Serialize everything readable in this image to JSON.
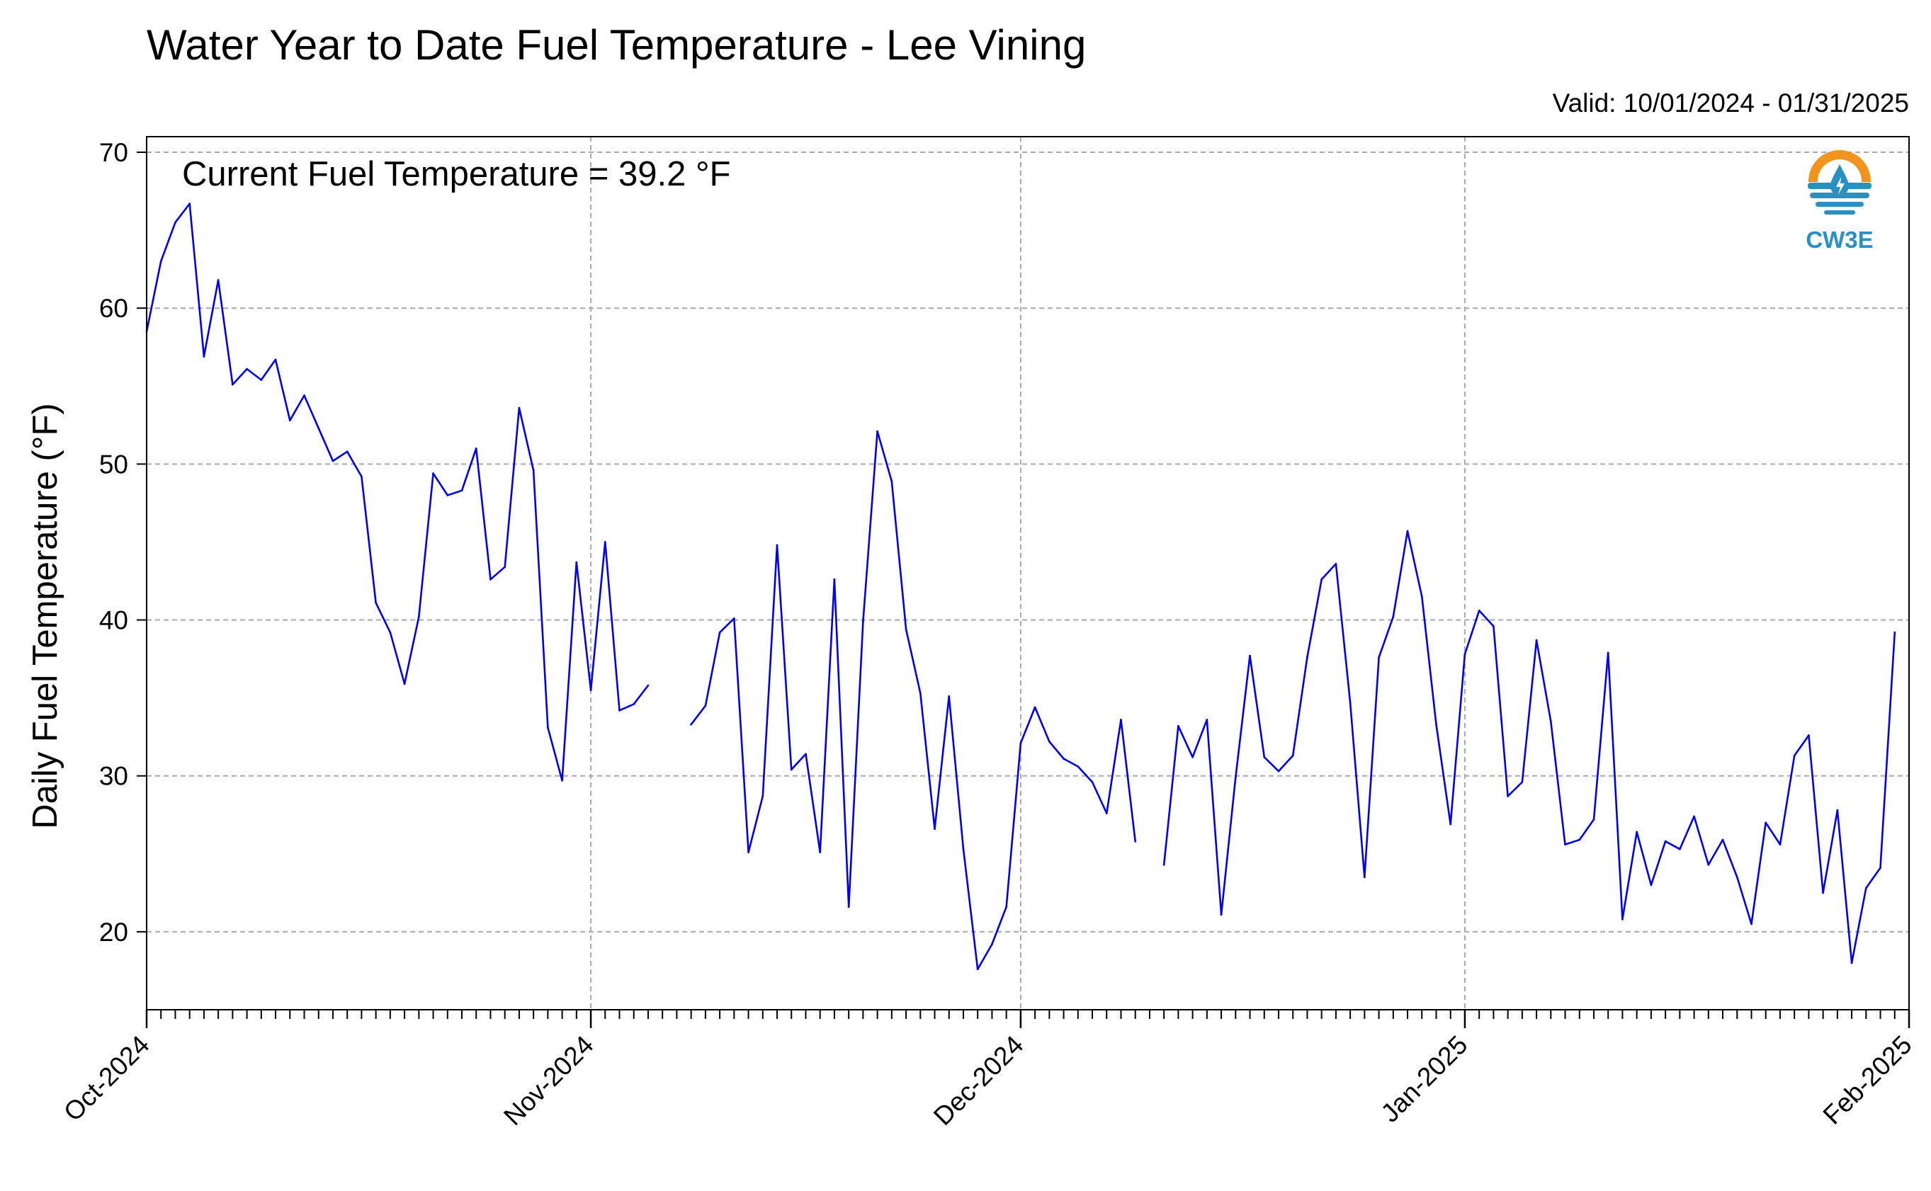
{
  "header": {
    "title": "Water Year to Date Fuel Temperature - Lee Vining",
    "valid": "Valid: 10/01/2024 - 01/31/2025"
  },
  "annotation": "Current Fuel Temperature = 39.2 °F",
  "logo": {
    "text": "CW3E",
    "icon": "cw3e-droplet-logo",
    "orange": "#f0941e",
    "blue": "#2a8fc1"
  },
  "colors": {
    "line": "#0000ee",
    "grid": "#a9a9a9"
  },
  "chart_data": {
    "type": "line",
    "title": "Water Year to Date Fuel Temperature - Lee Vining",
    "xlabel": "",
    "ylabel": "Daily Fuel Temperature (°F)",
    "xlim": [
      "2024-10-01",
      "2025-02-01"
    ],
    "ylim": [
      15,
      71
    ],
    "yticks": [
      20,
      30,
      40,
      50,
      60,
      70
    ],
    "xticks": [
      {
        "date": "2024-10-01",
        "label": "Oct-2024"
      },
      {
        "date": "2024-11-01",
        "label": "Nov-2024"
      },
      {
        "date": "2024-12-01",
        "label": "Dec-2024"
      },
      {
        "date": "2025-01-01",
        "label": "Jan-2025"
      },
      {
        "date": "2025-02-01",
        "label": "Feb-2025"
      }
    ],
    "grid": true,
    "x_start": "2024-10-01",
    "x_step": "1 day",
    "series": [
      {
        "name": "",
        "color": "#0000ee",
        "values": [
          58.5,
          63.0,
          65.5,
          66.7,
          56.9,
          61.8,
          55.1,
          56.1,
          55.4,
          56.7,
          52.8,
          54.4,
          52.3,
          50.2,
          50.8,
          49.2,
          41.1,
          39.2,
          35.9,
          40.2,
          49.4,
          48.0,
          48.3,
          51.0,
          42.6,
          43.4,
          53.6,
          49.6,
          33.1,
          29.7,
          43.7,
          35.5,
          45.0,
          34.2,
          34.6,
          35.8,
          null,
          null,
          33.3,
          34.5,
          39.2,
          40.1,
          25.1,
          28.7,
          44.8,
          30.4,
          31.4,
          25.1,
          42.6,
          21.6,
          39.9,
          52.1,
          48.9,
          39.4,
          35.3,
          26.6,
          35.1,
          25.3,
          17.6,
          19.2,
          21.6,
          32.1,
          34.4,
          32.2,
          31.1,
          30.6,
          29.6,
          27.6,
          33.6,
          25.8,
          null,
          24.3,
          33.2,
          31.2,
          33.6,
          21.1,
          29.9,
          37.7,
          31.2,
          30.3,
          31.3,
          37.6,
          42.6,
          43.6,
          34.7,
          23.5,
          37.6,
          40.2,
          45.7,
          41.5,
          33.3,
          26.9,
          37.8,
          40.6,
          39.6,
          28.7,
          29.6,
          38.7,
          33.5,
          25.6,
          25.9,
          27.2,
          37.9,
          20.8,
          26.4,
          23.0,
          25.8,
          25.3,
          27.4,
          24.3,
          25.9,
          23.5,
          20.5,
          27.0,
          25.6,
          31.3,
          32.6,
          22.5,
          27.8,
          18.0,
          22.8,
          24.1,
          39.2
        ]
      }
    ]
  }
}
